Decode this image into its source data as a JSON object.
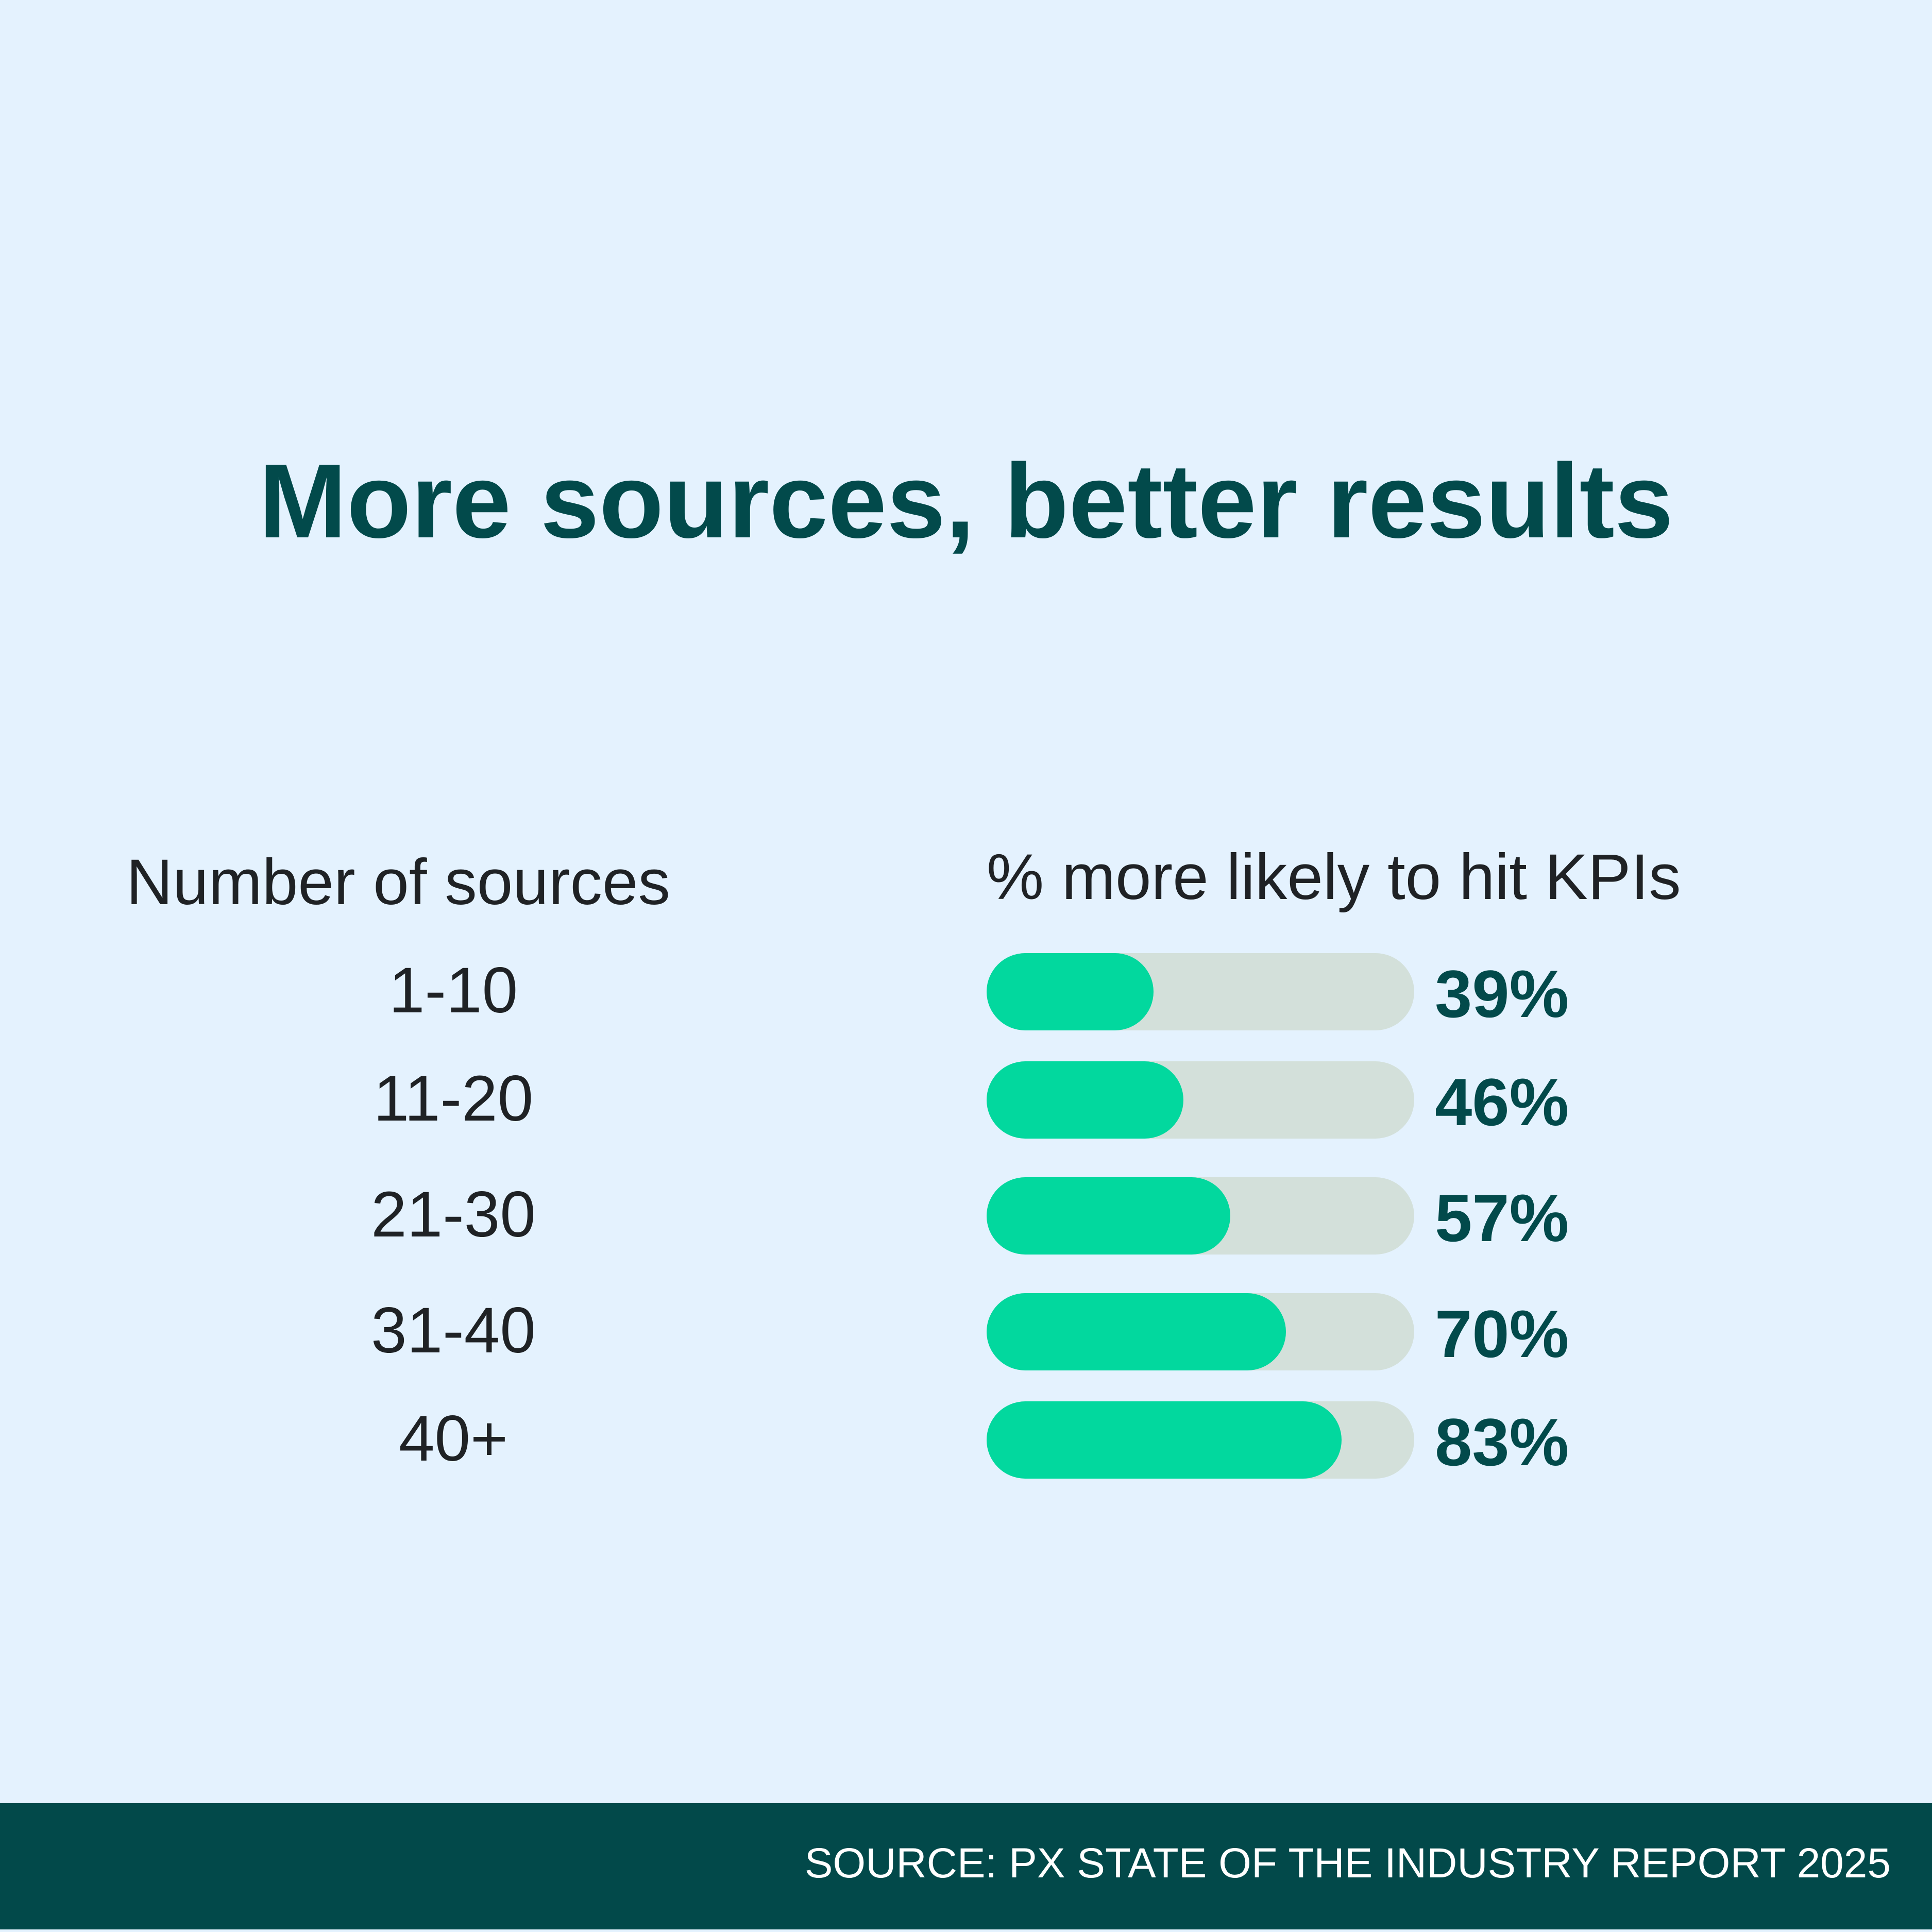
{
  "title": "More sources, better results",
  "footer": {
    "source": "SOURCE: PX STATE OF THE INDUSTRY REPORT 2025"
  },
  "colors": {
    "background": "#e4f2fe",
    "title": "#024a4b",
    "bar_fill": "#02d89e",
    "bar_track": "#d3e0da",
    "footer": "#02494a"
  },
  "chart_data": {
    "type": "bar",
    "orientation": "horizontal",
    "title": "More sources, better results",
    "xlabel": "% more likely to hit KPIs",
    "ylabel": "Number of sources",
    "categories": [
      "1-10",
      "11-20",
      "21-30",
      "31-40",
      "40+"
    ],
    "values": [
      39,
      46,
      57,
      70,
      83
    ],
    "value_labels": [
      "39%",
      "46%",
      "57%",
      "70%",
      "83%"
    ],
    "xlim": [
      0,
      100
    ],
    "grid": false,
    "legend": "none"
  }
}
